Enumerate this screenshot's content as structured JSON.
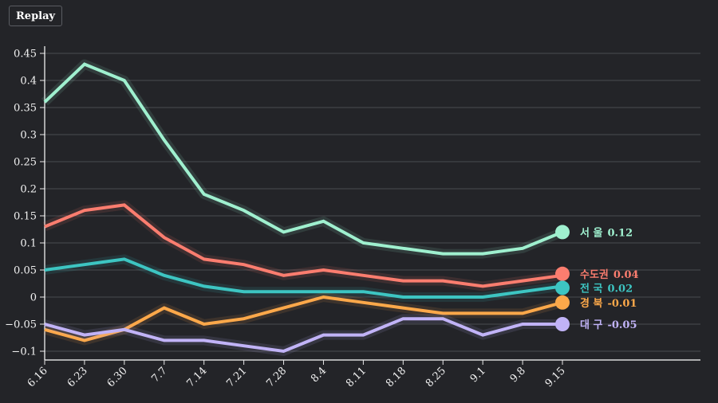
{
  "toolbar": {
    "replay_label": "Replay"
  },
  "chart_data": {
    "type": "line",
    "title": "",
    "xlabel": "",
    "ylabel": "",
    "x": [
      "6.16",
      "6.23",
      "6.30",
      "7.7",
      "7.14",
      "7.21",
      "7.28",
      "8.4",
      "8.11",
      "8.18",
      "8.25",
      "9.1",
      "9.8",
      "9.15"
    ],
    "yticks": [
      "0.45",
      "0.4",
      "0.35",
      "0.3",
      "0.25",
      "0.2",
      "0.15",
      "0.1",
      "0.05",
      "0",
      "-0.05",
      "-0.1"
    ],
    "ylim": [
      -0.115,
      0.465
    ],
    "grid": true,
    "legend": "end-of-line labels (right)",
    "series": [
      {
        "name": "서 울",
        "color": "#9ff0cf",
        "end_label": "0.12",
        "values": [
          0.36,
          0.43,
          0.4,
          0.29,
          0.19,
          0.16,
          0.12,
          0.14,
          0.1,
          0.09,
          0.08,
          0.08,
          0.09,
          0.12
        ]
      },
      {
        "name": "수도권",
        "color": "#fb7d6f",
        "end_label": "0.04",
        "values": [
          0.13,
          0.16,
          0.17,
          0.11,
          0.07,
          0.06,
          0.04,
          0.05,
          0.04,
          0.03,
          0.03,
          0.02,
          0.03,
          0.04
        ]
      },
      {
        "name": "전 국",
        "color": "#3dc5c2",
        "end_label": "0.02",
        "values": [
          0.05,
          0.06,
          0.07,
          0.04,
          0.02,
          0.01,
          0.01,
          0.01,
          0.01,
          0.0,
          0.0,
          0.0,
          0.01,
          0.02
        ]
      },
      {
        "name": "경 북",
        "color": "#fca84a",
        "end_label": "-0.01",
        "values": [
          -0.06,
          -0.08,
          -0.06,
          -0.02,
          -0.05,
          -0.04,
          -0.02,
          0.0,
          -0.01,
          -0.02,
          -0.03,
          -0.03,
          -0.03,
          -0.01
        ]
      },
      {
        "name": "대 구",
        "color": "#c1b3f7",
        "end_label": "-0.05",
        "values": [
          -0.05,
          -0.07,
          -0.06,
          -0.08,
          -0.08,
          -0.09,
          -0.1,
          -0.07,
          -0.07,
          -0.04,
          -0.04,
          -0.07,
          -0.05,
          -0.05
        ]
      }
    ]
  }
}
